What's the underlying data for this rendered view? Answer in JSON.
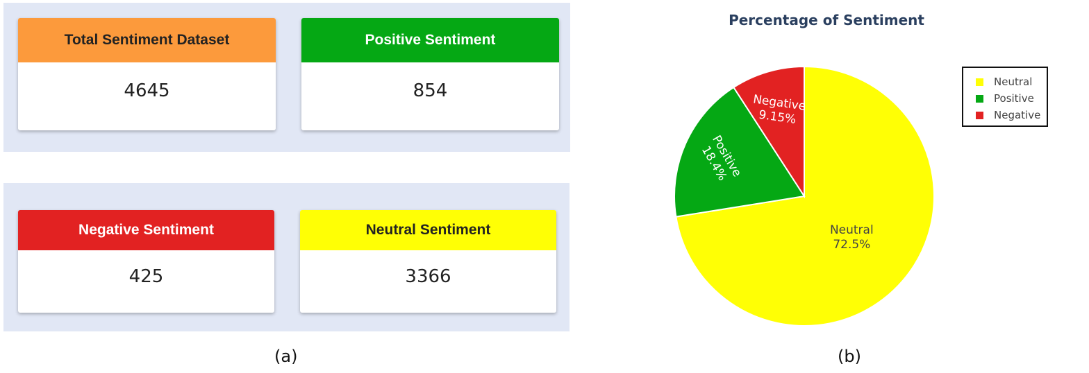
{
  "cards": {
    "total": {
      "title": "Total Sentiment Dataset",
      "value": "4645",
      "color": "#fc9a3c"
    },
    "positive": {
      "title": "Positive Sentiment",
      "value": "854",
      "color": "#05a814"
    },
    "negative": {
      "title": "Negative Sentiment",
      "value": "425",
      "color": "#e22222"
    },
    "neutral": {
      "title": "Neutral Sentiment",
      "value": "3366",
      "color": "#ffff05"
    }
  },
  "captions": {
    "a": "(a)",
    "b": "(b)"
  },
  "chart_data": {
    "type": "pie",
    "title": "Percentage of Sentiment",
    "slices": [
      {
        "label": "Neutral",
        "percent": 72.5,
        "text": "72.5%",
        "color": "#ffff05"
      },
      {
        "label": "Positive",
        "percent": 18.4,
        "text": "18.4%",
        "color": "#05a814"
      },
      {
        "label": "Negative",
        "percent": 9.15,
        "text": "9.15%",
        "color": "#e22222"
      }
    ],
    "legend": [
      "Neutral",
      "Positive",
      "Negative"
    ],
    "legend_position": "top-right"
  }
}
